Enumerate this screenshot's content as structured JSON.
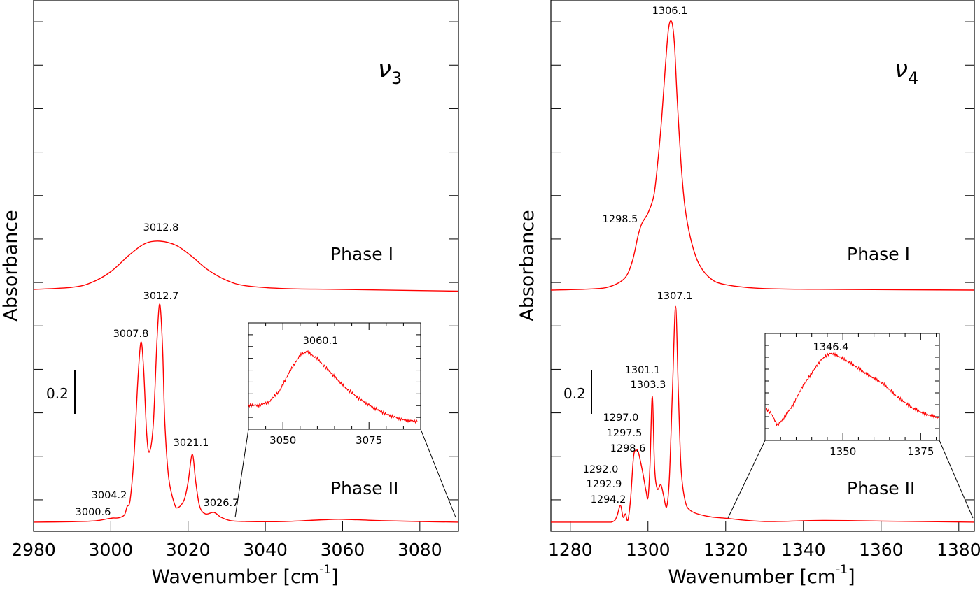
{
  "chart_data": [
    {
      "type": "line",
      "panel": "left",
      "mode_label": {
        "symbol": "ν",
        "sub": "3"
      },
      "xlabel": {
        "main": "Wavenumber [cm",
        "sup": "-1",
        "end": "]"
      },
      "ylabel": "Absorbance",
      "xlim": [
        2980,
        3090
      ],
      "ylim": [
        0.055,
        2.5
      ],
      "xticks": [
        2980,
        3000,
        3020,
        3040,
        3060,
        3080
      ],
      "yticks": [
        0.2,
        0.4,
        0.6,
        0.8,
        1.0,
        1.2,
        1.4,
        1.6,
        1.8,
        2.0,
        2.2,
        2.4
      ],
      "scale_bar": {
        "label": "0.2",
        "value": 0.2
      },
      "color": "#ff0000",
      "series": [
        {
          "name": "Phase I",
          "x": [
            2980,
            2990,
            2995,
            3000,
            3005,
            3009,
            3012.8,
            3017,
            3021,
            3025,
            3030,
            3035,
            3045,
            3060,
            3090
          ],
          "y": [
            1.168,
            1.178,
            1.2,
            1.25,
            1.33,
            1.38,
            1.39,
            1.37,
            1.32,
            1.26,
            1.21,
            1.185,
            1.172,
            1.168,
            1.16
          ]
        },
        {
          "name": "Phase II",
          "x": [
            2980,
            2990,
            2996,
            2999,
            3000.6,
            3002,
            3003.5,
            3004.2,
            3005,
            3006,
            3007,
            3007.8,
            3008.5,
            3009.3,
            3010,
            3011,
            3012,
            3012.7,
            3013.4,
            3014,
            3015,
            3016.5,
            3017.5,
            3019,
            3020,
            3021.1,
            3022,
            3023,
            3024.5,
            3026.7,
            3028.5,
            3031,
            3035,
            3045,
            3055,
            3060,
            3070,
            3080,
            3090
          ],
          "y": [
            0.097,
            0.099,
            0.103,
            0.112,
            0.116,
            0.117,
            0.13,
            0.168,
            0.2,
            0.4,
            0.75,
            0.926,
            0.8,
            0.5,
            0.42,
            0.55,
            0.95,
            1.1,
            0.9,
            0.55,
            0.3,
            0.18,
            0.165,
            0.2,
            0.28,
            0.41,
            0.28,
            0.17,
            0.135,
            0.142,
            0.12,
            0.104,
            0.1,
            0.1,
            0.108,
            0.11,
            0.104,
            0.1,
            0.097
          ]
        }
      ],
      "phase_labels": [
        "Phase I",
        "Phase II"
      ],
      "annotations": [
        "3012.8",
        "3012.7",
        "3007.8",
        "3021.1",
        "3026.7",
        "3004.2",
        "3000.6"
      ],
      "inset": {
        "xlim": [
          3040,
          3090
        ],
        "xticks": [
          3050,
          3075
        ],
        "annotation": "3060.1",
        "x": [
          3040,
          3043,
          3046,
          3049,
          3052,
          3055,
          3057,
          3060,
          3064,
          3068,
          3072,
          3076,
          3080,
          3085,
          3089
        ],
        "y": [
          0.22,
          0.22,
          0.26,
          0.38,
          0.6,
          0.78,
          0.82,
          0.74,
          0.58,
          0.42,
          0.3,
          0.2,
          0.12,
          0.06,
          0.04
        ]
      }
    },
    {
      "type": "line",
      "panel": "right",
      "mode_label": {
        "symbol": "ν",
        "sub": "4"
      },
      "xlabel": {
        "main": "Wavenumber [cm",
        "sup": "-1",
        "end": "]"
      },
      "ylabel": "Absorbance",
      "xlim": [
        1275,
        1384
      ],
      "ylim": [
        0.055,
        2.5
      ],
      "xticks": [
        1280,
        1300,
        1320,
        1340,
        1360,
        1380
      ],
      "yticks": [
        0.2,
        0.4,
        0.6,
        0.8,
        1.0,
        1.2,
        1.4,
        1.6,
        1.8,
        2.0,
        2.2,
        2.4
      ],
      "scale_bar": {
        "label": "0.2",
        "value": 0.2
      },
      "color": "#ff0000",
      "series": [
        {
          "name": "Phase I",
          "x": [
            1275,
            1285,
            1290,
            1294,
            1296,
            1297.5,
            1298.5,
            1300,
            1301.5,
            1302.5,
            1303.5,
            1304.5,
            1305.3,
            1306.1,
            1306.8,
            1307.5,
            1308.5,
            1309.5,
            1311,
            1313,
            1316,
            1320,
            1330,
            1350,
            1384
          ],
          "y": [
            1.165,
            1.17,
            1.18,
            1.22,
            1.3,
            1.42,
            1.474,
            1.52,
            1.6,
            1.75,
            1.95,
            2.2,
            2.37,
            2.4,
            2.3,
            2.05,
            1.75,
            1.55,
            1.4,
            1.29,
            1.22,
            1.19,
            1.172,
            1.168,
            1.165
          ]
        },
        {
          "name": "Phase II",
          "x": [
            1275,
            1288,
            1291,
            1292,
            1292.9,
            1293.6,
            1294.2,
            1294.8,
            1295.5,
            1296.3,
            1297.0,
            1297.5,
            1298.6,
            1299.5,
            1300,
            1300.5,
            1301.1,
            1301.7,
            1302.4,
            1303.3,
            1304,
            1304.8,
            1305.5,
            1306.3,
            1307.1,
            1307.8,
            1308.5,
            1309.5,
            1311,
            1315,
            1320,
            1330,
            1345,
            1360,
            1384
          ],
          "y": [
            0.097,
            0.097,
            0.1,
            0.125,
            0.174,
            0.12,
            0.135,
            0.105,
            0.2,
            0.4,
            0.426,
            0.42,
            0.33,
            0.24,
            0.21,
            0.35,
            0.677,
            0.35,
            0.25,
            0.27,
            0.22,
            0.168,
            0.3,
            0.7,
            1.09,
            0.7,
            0.35,
            0.2,
            0.15,
            0.125,
            0.115,
            0.1,
            0.105,
            0.102,
            0.097
          ]
        }
      ],
      "phase_labels": [
        "Phase I",
        "Phase II"
      ],
      "annotations": [
        "1306.1",
        "1298.5",
        "1307.1",
        "1301.1",
        "1303.3",
        "1297.0",
        "1297.5",
        "1298.6",
        "1292.0",
        "1292.9",
        "1294.2"
      ],
      "inset": {
        "xlim": [
          1325,
          1381
        ],
        "xticks": [
          1350,
          1375
        ],
        "annotation": "1346.4",
        "x": [
          1325.5,
          1327,
          1329,
          1331,
          1334,
          1337,
          1340,
          1343,
          1346,
          1349,
          1353,
          1358,
          1363,
          1367,
          1372,
          1376,
          1381
        ],
        "y": [
          0.3,
          0.25,
          0.12,
          0.2,
          0.35,
          0.55,
          0.7,
          0.85,
          0.92,
          0.88,
          0.8,
          0.68,
          0.58,
          0.45,
          0.32,
          0.25,
          0.2
        ]
      }
    }
  ]
}
